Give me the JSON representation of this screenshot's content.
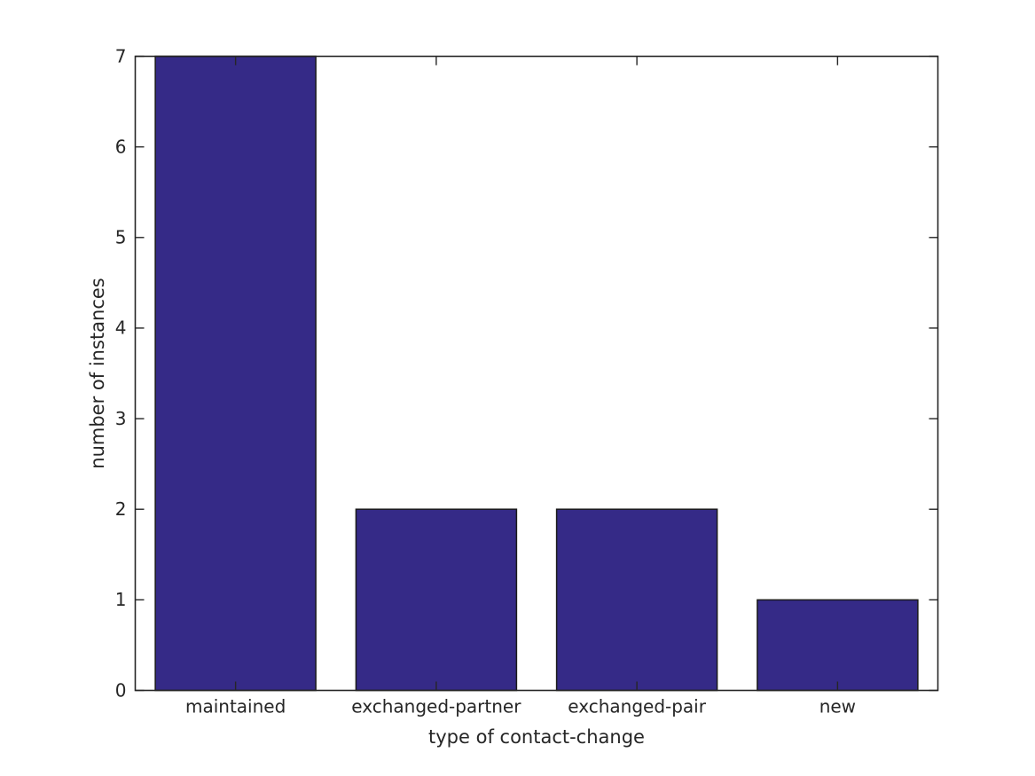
{
  "chart_data": {
    "type": "bar",
    "title": "",
    "categories": [
      "maintained",
      "exchanged-partner",
      "exchanged-pair",
      "new"
    ],
    "values": [
      7,
      2,
      2,
      1
    ],
    "xlabel": "type of contact-change",
    "ylabel": "number of instances",
    "ylim": [
      0,
      7
    ],
    "yticks": [
      0,
      1,
      2,
      3,
      4,
      5,
      6,
      7
    ],
    "grid": false,
    "legend": "none",
    "bar_width_fraction": 0.8,
    "colors": {
      "bar_fill": "#352A87",
      "bar_edge": "#1a1a1a",
      "axis": "#262626",
      "text": "#262626",
      "background": "#ffffff"
    }
  }
}
